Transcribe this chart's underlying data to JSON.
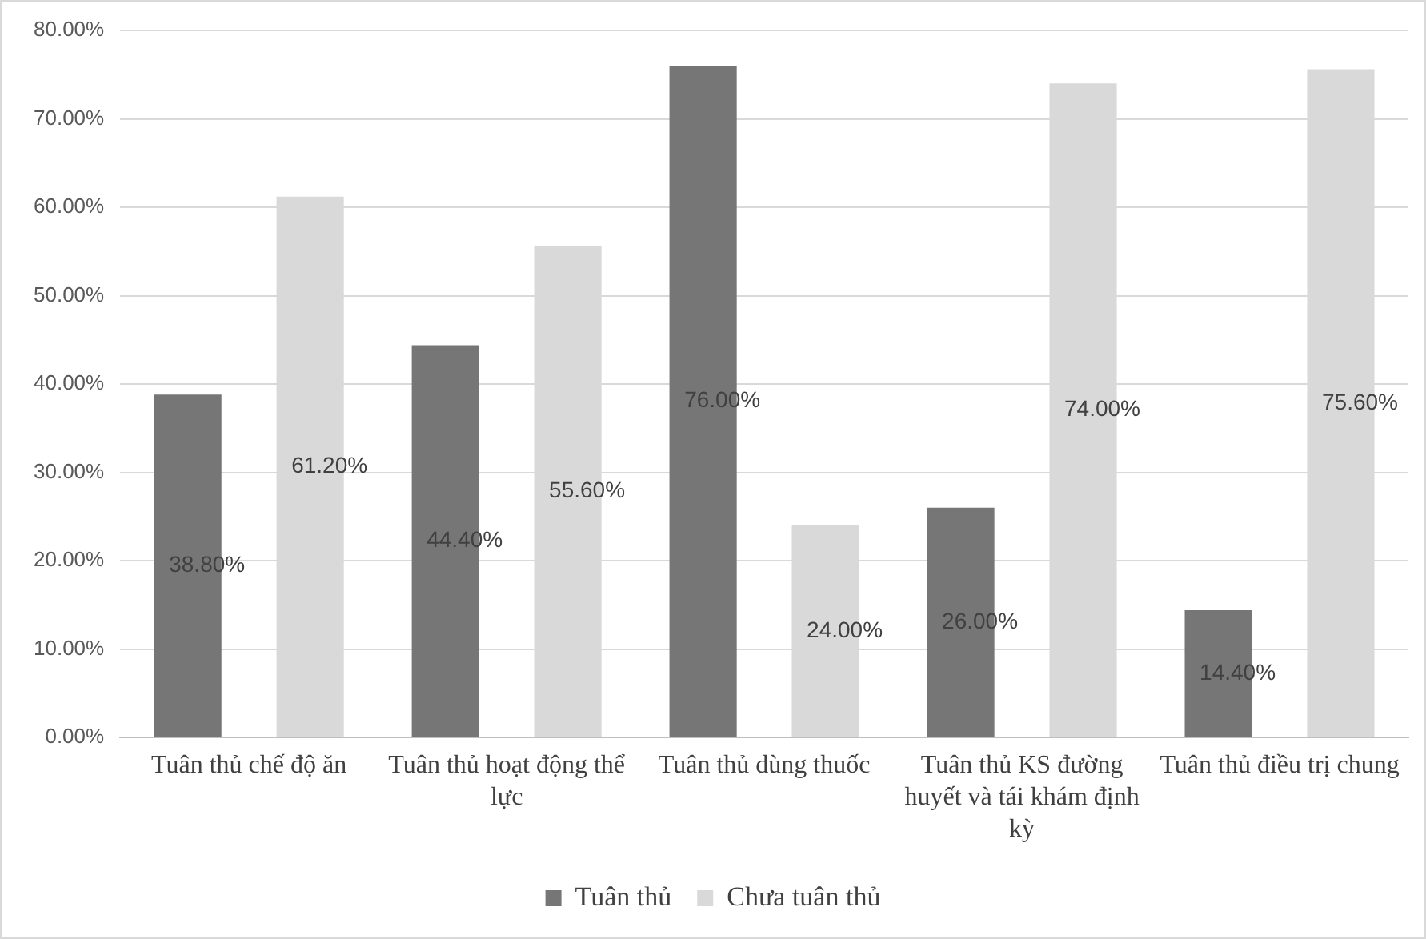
{
  "chart_data": {
    "type": "bar",
    "categories": [
      "Tuân thủ chế độ ăn",
      "Tuân thủ hoạt động thể lực",
      "Tuân thủ dùng thuốc",
      "Tuân thủ KS đường huyết và tái khám định kỳ",
      "Tuân thủ điều trị chung"
    ],
    "series": [
      {
        "name": "Tuân thủ",
        "color": "#767676",
        "values": [
          38.8,
          44.4,
          76.0,
          26.0,
          14.4
        ],
        "value_labels": [
          "38.80%",
          "44.40%",
          "76.00%",
          "26.00%",
          "14.40%"
        ]
      },
      {
        "name": "Chưa tuân thủ",
        "color": "#d9d9d9",
        "values": [
          61.2,
          55.6,
          24.0,
          74.0,
          75.6
        ],
        "value_labels": [
          "61.20%",
          "55.60%",
          "24.00%",
          "74.00%",
          "75.60%"
        ]
      }
    ],
    "ylim": [
      0,
      80
    ],
    "yticks": [
      {
        "value": 0,
        "label": "0.00%"
      },
      {
        "value": 10,
        "label": "10.00%"
      },
      {
        "value": 20,
        "label": "20.00%"
      },
      {
        "value": 30,
        "label": "30.00%"
      },
      {
        "value": 40,
        "label": "40.00%"
      },
      {
        "value": 50,
        "label": "50.00%"
      },
      {
        "value": 60,
        "label": "60.00%"
      },
      {
        "value": 70,
        "label": "70.00%"
      },
      {
        "value": 80,
        "label": "80.00%"
      }
    ],
    "grid": "y",
    "legend": "bottom"
  }
}
